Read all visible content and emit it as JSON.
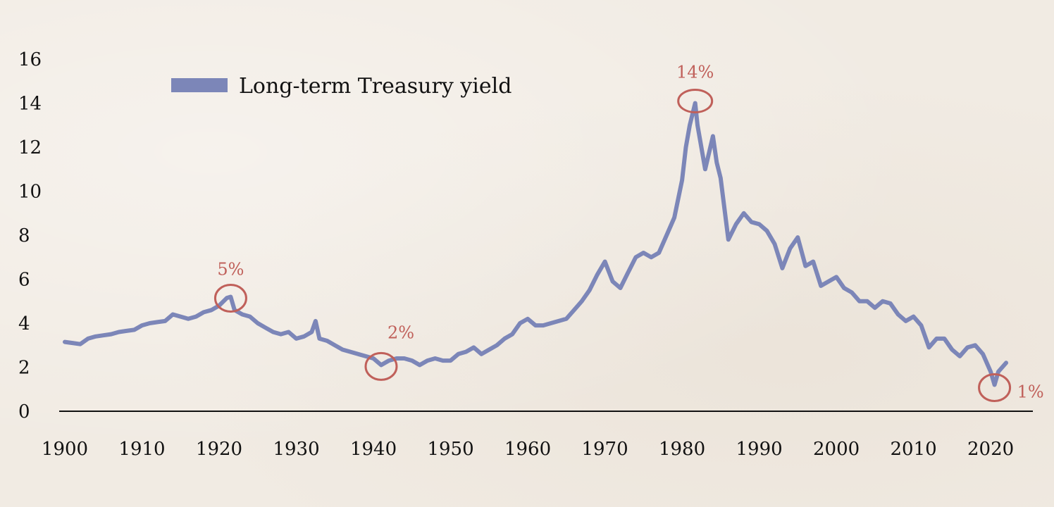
{
  "colors": {
    "series": "#7c86b8",
    "annotation": "#c0605a",
    "axis": "#111111",
    "text": "#111111"
  },
  "chart_data": {
    "type": "line",
    "title": "",
    "xlabel": "",
    "ylabel": "",
    "xlim": [
      1900,
      2022
    ],
    "ylim": [
      0,
      16
    ],
    "grid": false,
    "x_ticks": [
      1900,
      1910,
      1920,
      1930,
      1940,
      1950,
      1960,
      1970,
      1980,
      1990,
      2000,
      2010,
      2020
    ],
    "y_ticks": [
      0,
      2,
      4,
      6,
      8,
      10,
      12,
      14,
      16
    ],
    "legend": {
      "position": "top-left",
      "entries": [
        "Long-term Treasury yield"
      ]
    },
    "series": [
      {
        "name": "Long-term Treasury yield",
        "x": [
          1900,
          1901,
          1902,
          1903,
          1904,
          1905,
          1906,
          1907,
          1908,
          1909,
          1910,
          1911,
          1912,
          1913,
          1914,
          1915,
          1916,
          1917,
          1918,
          1919,
          1920,
          1921,
          1921.5,
          1922,
          1923,
          1924,
          1925,
          1926,
          1927,
          1928,
          1929,
          1930,
          1931,
          1932,
          1932.5,
          1933,
          1934,
          1935,
          1936,
          1937,
          1938,
          1939,
          1940,
          1941,
          1942,
          1943,
          1944,
          1945,
          1946,
          1947,
          1948,
          1949,
          1950,
          1951,
          1952,
          1953,
          1954,
          1955,
          1956,
          1957,
          1958,
          1959,
          1960,
          1961,
          1962,
          1963,
          1964,
          1965,
          1966,
          1967,
          1968,
          1969,
          1970,
          1971,
          1972,
          1973,
          1974,
          1975,
          1976,
          1977,
          1978,
          1979,
          1980,
          1980.5,
          1981,
          1981.7,
          1982,
          1983,
          1984,
          1984.5,
          1985,
          1986,
          1987,
          1988,
          1989,
          1990,
          1991,
          1992,
          1993,
          1994,
          1995,
          1996,
          1997,
          1998,
          1999,
          2000,
          2001,
          2002,
          2003,
          2004,
          2005,
          2006,
          2007,
          2008,
          2009,
          2010,
          2011,
          2012,
          2013,
          2014,
          2015,
          2016,
          2017,
          2018,
          2019,
          2020,
          2020.5,
          2021,
          2022
        ],
        "values": [
          3.15,
          3.1,
          3.05,
          3.3,
          3.4,
          3.45,
          3.5,
          3.6,
          3.65,
          3.7,
          3.9,
          4.0,
          4.05,
          4.1,
          4.4,
          4.3,
          4.2,
          4.3,
          4.5,
          4.6,
          4.8,
          5.15,
          5.2,
          4.6,
          4.4,
          4.3,
          4.0,
          3.8,
          3.6,
          3.5,
          3.6,
          3.3,
          3.4,
          3.6,
          4.1,
          3.3,
          3.2,
          3.0,
          2.8,
          2.7,
          2.6,
          2.5,
          2.4,
          2.1,
          2.3,
          2.4,
          2.4,
          2.3,
          2.1,
          2.3,
          2.4,
          2.3,
          2.3,
          2.6,
          2.7,
          2.9,
          2.6,
          2.8,
          3.0,
          3.3,
          3.5,
          4.0,
          4.2,
          3.9,
          3.9,
          4.0,
          4.1,
          4.2,
          4.6,
          5.0,
          5.5,
          6.2,
          6.8,
          5.9,
          5.6,
          6.3,
          7.0,
          7.2,
          7.0,
          7.2,
          8.0,
          8.8,
          10.5,
          12.0,
          13.0,
          14.0,
          13.0,
          11.0,
          12.5,
          11.3,
          10.6,
          7.8,
          8.5,
          9.0,
          8.6,
          8.5,
          8.2,
          7.6,
          6.5,
          7.4,
          7.9,
          6.6,
          6.8,
          5.7,
          5.9,
          6.1,
          5.6,
          5.4,
          5.0,
          5.0,
          4.7,
          5.0,
          4.9,
          4.4,
          4.1,
          4.3,
          3.9,
          2.9,
          3.3,
          3.3,
          2.8,
          2.5,
          2.9,
          3.0,
          2.6,
          1.8,
          1.2,
          1.8,
          2.2
        ]
      }
    ],
    "annotations": [
      {
        "label": "5%",
        "x": 1921.5,
        "y": 5.2
      },
      {
        "label": "2%",
        "x": 1941,
        "y": 2.1
      },
      {
        "label": "14%",
        "x": 1981.7,
        "y": 14.0
      },
      {
        "label": "1%",
        "x": 2020.5,
        "y": 1.2
      }
    ]
  }
}
